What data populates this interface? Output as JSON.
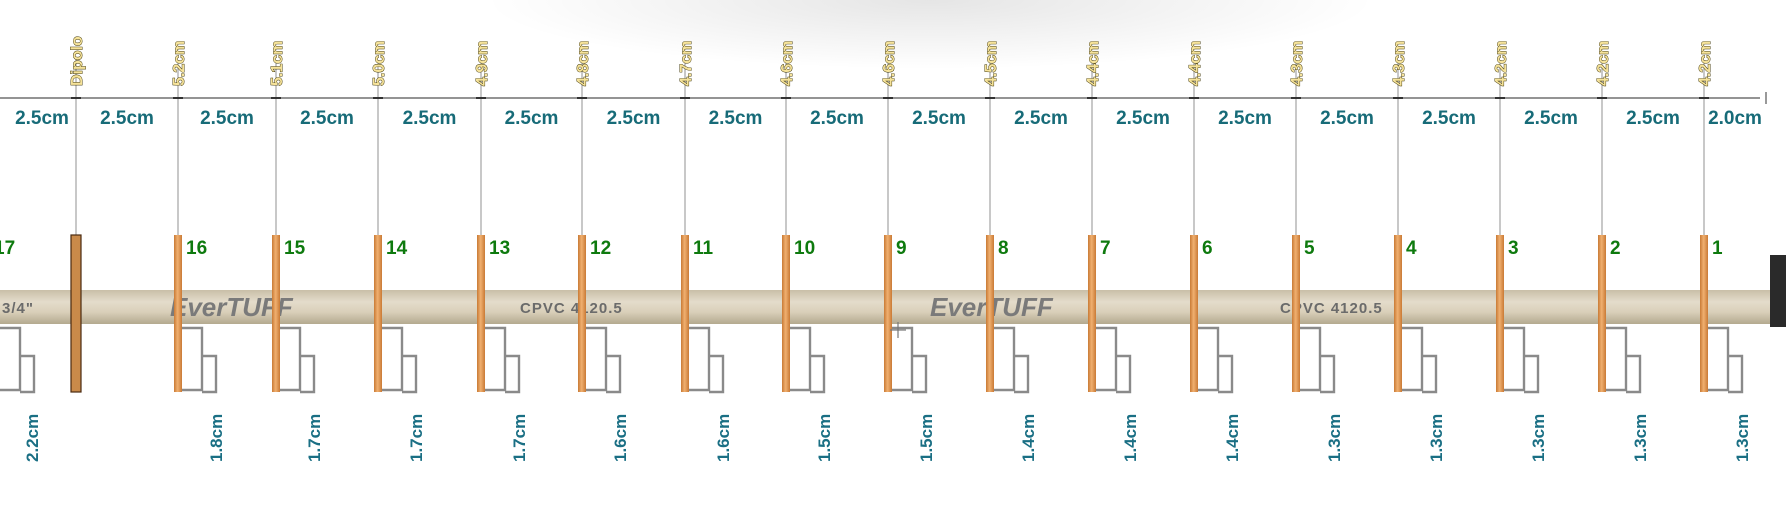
{
  "diagram": {
    "dipole_label": "Dipolo",
    "elements": [
      {
        "number": "17",
        "length": "",
        "gap": "2.2cm"
      },
      {
        "number": "16",
        "length": "5.2cm",
        "gap": "1.8cm"
      },
      {
        "number": "15",
        "length": "5.1cm",
        "gap": "1.7cm"
      },
      {
        "number": "14",
        "length": "5.0cm",
        "gap": "1.7cm"
      },
      {
        "number": "13",
        "length": "4.9cm",
        "gap": "1.7cm"
      },
      {
        "number": "12",
        "length": "4.8cm",
        "gap": "1.6cm"
      },
      {
        "number": "11",
        "length": "4.7cm",
        "gap": "1.6cm"
      },
      {
        "number": "10",
        "length": "4.6cm",
        "gap": "1.5cm"
      },
      {
        "number": "9",
        "length": "4.6cm",
        "gap": "1.5cm"
      },
      {
        "number": "8",
        "length": "4.5cm",
        "gap": "1.4cm"
      },
      {
        "number": "7",
        "length": "4.4cm",
        "gap": "1.4cm"
      },
      {
        "number": "6",
        "length": "4.4cm",
        "gap": "1.4cm"
      },
      {
        "number": "5",
        "length": "4.3cm",
        "gap": "1.3cm"
      },
      {
        "number": "4",
        "length": "4.3cm",
        "gap": "1.3cm"
      },
      {
        "number": "3",
        "length": "4.2cm",
        "gap": "1.3cm"
      },
      {
        "number": "2",
        "length": "4.2cm",
        "gap": "1.3cm"
      },
      {
        "number": "1",
        "length": "4.2cm",
        "gap": "1.3cm"
      }
    ],
    "spacings": [
      "2.5cm",
      "2.5cm",
      "2.5cm",
      "2.5cm",
      "2.5cm",
      "2.5cm",
      "2.5cm",
      "2.5cm",
      "2.5cm",
      "2.5cm",
      "2.5cm",
      "2.5cm",
      "2.5cm",
      "2.5cm",
      "2.5cm",
      "2.5cm",
      "2.5cm",
      "2.0cm"
    ],
    "tube_markings": {
      "brand": "EverTUFF",
      "spec": "CPVC 4120.5",
      "size": "3/4\""
    }
  },
  "colors": {
    "rod": "#e39a55",
    "rod_edge": "#c97a35",
    "dipole": "#c98a4a",
    "tube": "#d8ceb8",
    "bracket": "#8a8a8a",
    "guide": "#9a9a9a"
  }
}
